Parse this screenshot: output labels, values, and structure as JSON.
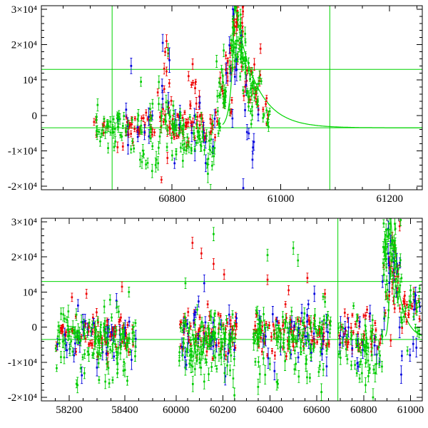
{
  "figure": {
    "title": "",
    "background": "#ffffff"
  },
  "colors": {
    "red": "#ee0000",
    "green": "#00cc00",
    "blue": "#0000dd",
    "guide_green": "#00d400",
    "axis": "#000000"
  },
  "chart_meta": {
    "seed": 1337,
    "marker": "square",
    "error_bars": true,
    "cluster_fields": [
      "x_start",
      "x_end",
      "n_points",
      "y_mean",
      "y_sd",
      "y_err"
    ],
    "outlier_fields": [
      "x",
      "y",
      "y_err"
    ]
  },
  "chart_data": [
    {
      "name": "top",
      "type": "scatter",
      "title": "",
      "xlabel": "",
      "ylabel": "",
      "x_segments": [
        {
          "x0": 60560,
          "x1": 61260,
          "f0": 0,
          "f1": 1
        }
      ],
      "ylim": [
        -21000,
        31000
      ],
      "x_major_ticks": [
        60800,
        61000,
        61200
      ],
      "x_tick_labels": [
        "60800",
        "61000",
        "61200"
      ],
      "x_minor_step": 50,
      "y_major_ticks": [
        -20000,
        -10000,
        0,
        10000,
        20000,
        30000
      ],
      "y_tick_labels": [
        "-2×10⁴",
        "-1×10⁴",
        "0",
        "10⁴",
        "2×10⁴",
        "3×10⁴"
      ],
      "y_minor_step": 2000,
      "hlines": [
        13000,
        -3500
      ],
      "vlines": [
        60690,
        61090
      ],
      "model_curve": {
        "baseline": -3500,
        "peak_x": 60915,
        "amp": 35000,
        "rise_tau": 6,
        "decay_tau": 38,
        "x_start": 60893,
        "x_end": 61260
      },
      "series": [
        {
          "name": "red",
          "color": "#ee0000",
          "clusters": [
            [
              60650,
              60706,
              10,
              -2500,
              1800,
              800
            ],
            [
              60706,
              60770,
              32,
              -3000,
              2200,
              900
            ],
            [
              60772,
              60800,
              18,
              3000,
              7500,
              1400
            ],
            [
              60800,
              60885,
              48,
              -2500,
              2800,
              900
            ],
            [
              60830,
              60852,
              8,
              6500,
              2800,
              1200
            ],
            [
              60885,
              60910,
              16,
              8000,
              5500,
              1200
            ],
            [
              60908,
              60932,
              20,
              22000,
              5500,
              1500
            ],
            [
              60932,
              60965,
              18,
              9000,
              5000,
              1200
            ],
            [
              60965,
              60980,
              6,
              1500,
              2000,
              900
            ]
          ],
          "outliers": [
            [
              60790,
              21000,
              1800
            ],
            [
              60793,
              17500,
              1500
            ],
            [
              60838,
              14500,
              1500
            ],
            [
              60920,
              29500,
              1500
            ],
            [
              60913,
              27000,
              1400
            ],
            [
              60700,
              -9000,
              1500
            ]
          ]
        },
        {
          "name": "blue",
          "color": "#0000dd",
          "clusters": [
            [
              60700,
              60770,
              10,
              -3500,
              2600,
              1900
            ],
            [
              60776,
              60796,
              4,
              12000,
              5500,
              2400
            ],
            [
              60800,
              60882,
              12,
              -3500,
              4200,
              2000
            ],
            [
              60886,
              60930,
              10,
              15000,
              8500,
              2400
            ],
            [
              60930,
              60962,
              7,
              -2500,
              7500,
              2200
            ]
          ],
          "outliers": [
            [
              60783,
              20500,
              2400
            ],
            [
              60912,
              30000,
              2000
            ],
            [
              60931,
              -20500,
              2600
            ],
            [
              60948,
              -12500,
              2400
            ],
            [
              60725,
              14000,
              2200
            ],
            [
              60862,
              -13500,
              2400
            ]
          ]
        },
        {
          "name": "green",
          "color": "#00cc00",
          "clusters": [
            [
              60660,
              60772,
              58,
              -4000,
              3000,
              1200
            ],
            [
              60740,
              60778,
              9,
              -11500,
              2200,
              1700
            ],
            [
              60775,
              60800,
              15,
              1000,
              6000,
              1500
            ],
            [
              60800,
              60858,
              48,
              -4500,
              3400,
              1300
            ],
            [
              60855,
              60882,
              12,
              -9500,
              3800,
              1800
            ],
            [
              60882,
              60906,
              25,
              5000,
              4200,
              1300
            ],
            [
              60906,
              60936,
              48,
              18500,
              6000,
              1500
            ],
            [
              60936,
              60965,
              30,
              7000,
              4200,
              1300
            ],
            [
              60965,
              60982,
              8,
              500,
              1800,
              1000
            ]
          ],
          "outliers": [
            [
              60770,
              -14000,
              2000
            ],
            [
              60820,
              -12800,
              1800
            ],
            [
              60866,
              -16500,
              2500
            ],
            [
              60871,
              -22000,
              2500
            ],
            [
              60918,
              30500,
              1500
            ],
            [
              60926,
              28500,
              1500
            ],
            [
              60793,
              18500,
              1800
            ],
            [
              60743,
              9500,
              1300
            ]
          ]
        }
      ]
    },
    {
      "name": "bottom",
      "type": "scatter",
      "title": "",
      "xlabel": "",
      "ylabel": "",
      "x_segments": [
        {
          "x0": 58100,
          "x1": 58500,
          "f0": 0,
          "f1": 0.292
        },
        {
          "x0": 59900,
          "x1": 61050,
          "f0": 0.292,
          "f1": 1
        }
      ],
      "ylim": [
        -21000,
        31000
      ],
      "x_major_ticks": [
        58200,
        58400,
        60000,
        60200,
        60400,
        60600,
        60800,
        61000
      ],
      "x_tick_labels": [
        "58200",
        "58400",
        "60000",
        "60200",
        "60400",
        "60600",
        "60800",
        "61000"
      ],
      "x_minor_step": 50,
      "y_major_ticks": [
        -20000,
        -10000,
        0,
        10000,
        20000,
        30000
      ],
      "y_tick_labels": [
        "-2×10⁴",
        "-1×10⁴",
        "0",
        "10⁴",
        "2×10⁴",
        "3×10⁴"
      ],
      "y_minor_step": 2000,
      "hlines": [
        13000,
        -3500
      ],
      "vlines": [
        60690,
        61090
      ],
      "model_curve": {
        "baseline": -3500,
        "peak_x": 60915,
        "amp": 35000,
        "rise_tau": 6,
        "decay_tau": 38,
        "x_start": 60893,
        "x_end": 61048
      },
      "series": [
        {
          "name": "red",
          "color": "#ee0000",
          "clusters": [
            [
              58150,
              58440,
              85,
              -2000,
              2800,
              900
            ],
            [
              60010,
              60260,
              72,
              -2000,
              2900,
              900
            ],
            [
              60330,
              60660,
              85,
              -2000,
              2900,
              900
            ],
            [
              60690,
              60880,
              42,
              -2500,
              2900,
              900
            ],
            [
              60880,
              60960,
              26,
              14000,
              7000,
              1300
            ],
            [
              60960,
              61045,
              16,
              4000,
              3800,
              1100
            ]
          ],
          "outliers": [
            [
              58390,
              11500,
              1400
            ],
            [
              58262,
              9500,
              1300
            ],
            [
              58210,
              8500,
              1200
            ],
            [
              60070,
              24000,
              1600
            ],
            [
              60108,
              21000,
              1500
            ],
            [
              60160,
              18000,
              1500
            ],
            [
              60205,
              15000,
              1400
            ],
            [
              60390,
              13500,
              1400
            ],
            [
              60560,
              14000,
              1400
            ],
            [
              60480,
              10500,
              1300
            ],
            [
              60635,
              9500,
              1200
            ],
            [
              60922,
              25500,
              1500
            ],
            [
              60930,
              23000,
              1500
            ],
            [
              60975,
              9000,
              1200
            ]
          ]
        },
        {
          "name": "blue",
          "color": "#0000dd",
          "clusters": [
            [
              58150,
              58440,
              32,
              -2500,
              3800,
              2000
            ],
            [
              60010,
              60260,
              26,
              -2500,
              4200,
              2000
            ],
            [
              60330,
              60660,
              32,
              -2500,
              4200,
              2000
            ],
            [
              60690,
              60880,
              16,
              -3000,
              3800,
              2000
            ],
            [
              60880,
              60960,
              12,
              15000,
              9000,
              2400
            ],
            [
              60960,
              61040,
              8,
              0,
              5500,
              2200
            ]
          ],
          "outliers": [
            [
              60120,
              12500,
              2400
            ],
            [
              58300,
              -11500,
              2400
            ],
            [
              60420,
              -12500,
              2500
            ],
            [
              60960,
              -13500,
              2500
            ],
            [
              60905,
              28000,
              2200
            ],
            [
              60590,
              9500,
              2200
            ],
            [
              60210,
              -14000,
              2500
            ],
            [
              58370,
              7500,
              2100
            ]
          ]
        },
        {
          "name": "green",
          "color": "#00cc00",
          "clusters": [
            [
              58150,
              58440,
              125,
              -3500,
              4200,
              1400
            ],
            [
              58200,
              58430,
              14,
              -12000,
              2800,
              1900
            ],
            [
              60010,
              60260,
              105,
              -3500,
              4200,
              1400
            ],
            [
              60060,
              60250,
              12,
              -12500,
              2800,
              1900
            ],
            [
              60330,
              60660,
              115,
              -3500,
              4200,
              1400
            ],
            [
              60340,
              60650,
              14,
              -12500,
              3000,
              1900
            ],
            [
              60690,
              60880,
              52,
              -4000,
              4200,
              1400
            ],
            [
              60780,
              60875,
              10,
              -13000,
              3200,
              2000
            ],
            [
              60880,
              60962,
              62,
              18000,
              8000,
              1600
            ],
            [
              60962,
              61048,
              20,
              3000,
              4200,
              1300
            ]
          ],
          "outliers": [
            [
              58230,
              -16500,
              2200
            ],
            [
              58330,
              -15500,
              2000
            ],
            [
              58415,
              10000,
              1400
            ],
            [
              60120,
              -15500,
              2100
            ],
            [
              60160,
              26500,
              1900
            ],
            [
              60040,
              12500,
              1500
            ],
            [
              60350,
              -17000,
              2200
            ],
            [
              60620,
              -18500,
              2400
            ],
            [
              60390,
              20500,
              1700
            ],
            [
              60500,
              22500,
              1800
            ],
            [
              60520,
              19000,
              1700
            ],
            [
              60840,
              -20000,
              2500
            ],
            [
              60915,
              31000,
              1600
            ],
            [
              60908,
              29500,
              1600
            ],
            [
              60935,
              28000,
              1600
            ],
            [
              61000,
              10500,
              1400
            ]
          ]
        }
      ]
    }
  ]
}
